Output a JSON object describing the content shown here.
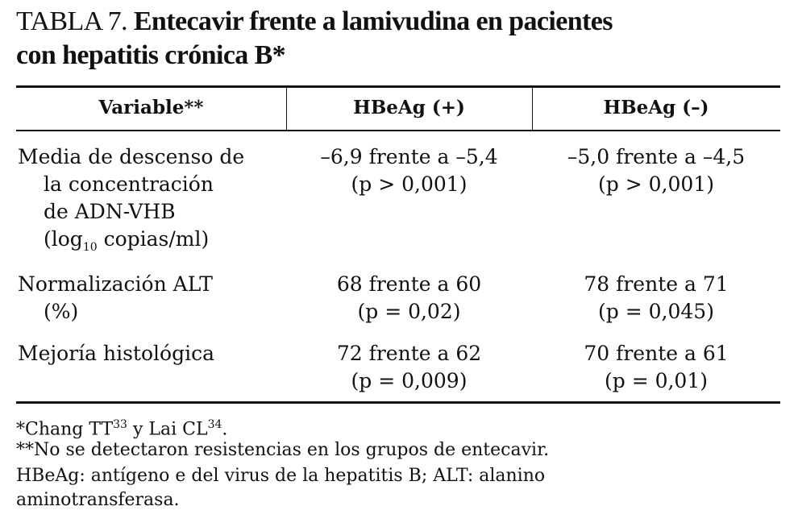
{
  "title": {
    "label": "TABLA 7.",
    "text_line1": "Entecavir frente a lamivudina en pacientes",
    "text_line2": "con hepatitis crónica B*"
  },
  "table": {
    "header": [
      "Variable**",
      "HBeAg (+)",
      "HBeAg (–)"
    ],
    "rows": [
      {
        "variable": {
          "lines": [
            "Media de descenso de",
            "la concentración",
            "de ADN-VHB"
          ],
          "last_before": "(log",
          "last_sub": "10",
          "last_after": " copias/ml)"
        },
        "cells": [
          [
            "–6,9 frente a –5,4",
            "(p > 0,001)"
          ],
          [
            "–5,0 frente a –4,5",
            "(p > 0,001)"
          ]
        ]
      },
      {
        "variable": {
          "lines": [
            "Normalización ALT",
            "(%)"
          ]
        },
        "cells": [
          [
            "68 frente a 60",
            "(p = 0,02)"
          ],
          [
            "78 frente a 71",
            "(p = 0,045)"
          ]
        ]
      },
      {
        "variable": {
          "lines": [
            "Mejoría histológica"
          ]
        },
        "cells": [
          [
            "72 frente a 62",
            "(p = 0,009)"
          ],
          [
            "70 frente a 61",
            "(p = 0,01)"
          ]
        ]
      }
    ]
  },
  "footnotes": {
    "note1": [
      "*Chang TT",
      "33",
      " y Lai CL",
      "34",
      "."
    ],
    "note2": "**No se detectaron resistencias en los grupos de entecavir.",
    "note3": [
      "HBeAg: antígeno e del virus de la hepatitis B; ALT: alanino",
      "aminotransferasa."
    ]
  }
}
